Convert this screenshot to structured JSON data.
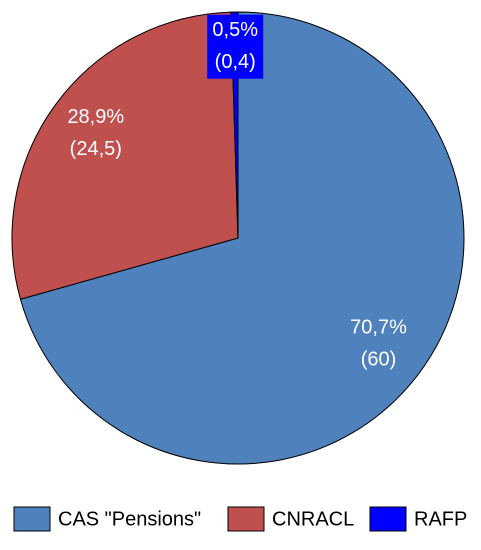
{
  "chart_data": {
    "type": "pie",
    "categories": [
      "CAS \"Pensions\"",
      "CNRACL",
      "RAFP"
    ],
    "values": [
      70.7,
      28.9,
      0.5
    ],
    "value_labels": [
      "70,7%",
      "28,9%",
      "0,5%"
    ],
    "amounts": [
      60,
      24.5,
      0.4
    ],
    "amount_labels": [
      "(60)",
      "(24,5)",
      "(0,4)"
    ],
    "colors": [
      "#4f81bd",
      "#c0504d",
      "#0000ff"
    ],
    "legend": "bottom"
  }
}
